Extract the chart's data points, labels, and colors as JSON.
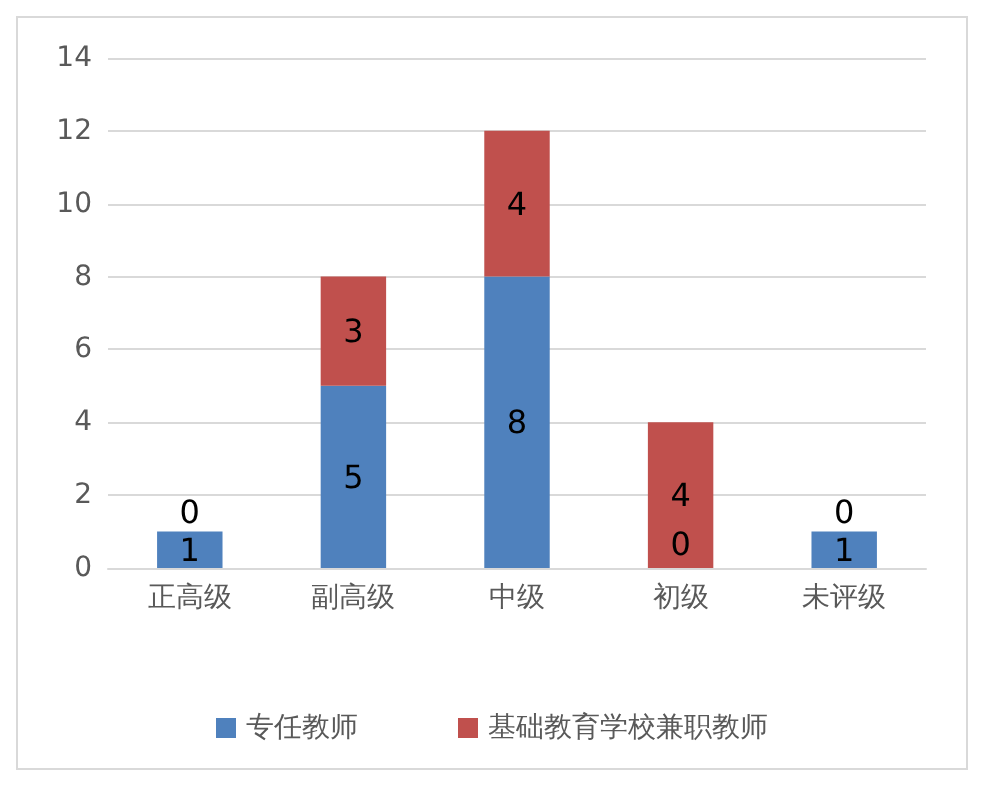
{
  "chart_data": {
    "type": "bar",
    "stacked": true,
    "categories": [
      "正高级",
      "副高级",
      "中级",
      "初级",
      "未评级"
    ],
    "series": [
      {
        "name": "专任教师",
        "color": "#4f81bd",
        "values": [
          1,
          5,
          8,
          0,
          1
        ]
      },
      {
        "name": "基础教育学校兼职教师",
        "color": "#c0504d",
        "values": [
          0,
          3,
          4,
          4,
          0
        ]
      }
    ],
    "ylim": [
      0,
      14
    ],
    "yticks": [
      0,
      2,
      4,
      6,
      8,
      10,
      12,
      14
    ],
    "grid": "y",
    "legend": "bottom",
    "data_labels": true
  }
}
